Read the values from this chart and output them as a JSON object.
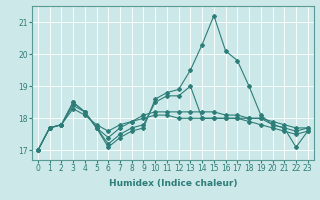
{
  "title": "",
  "xlabel": "Humidex (Indice chaleur)",
  "ylabel": "",
  "bg_color": "#cce8e8",
  "grid_color": "#ffffff",
  "line_color": "#2d7d78",
  "series": [
    [
      17.0,
      17.7,
      17.8,
      18.5,
      18.2,
      17.7,
      17.1,
      17.4,
      17.6,
      17.7,
      18.6,
      18.8,
      18.9,
      19.5,
      20.3,
      21.2,
      20.1,
      19.8,
      19.0,
      18.1,
      17.8,
      17.7,
      17.1,
      17.6
    ],
    [
      17.0,
      17.7,
      17.8,
      18.5,
      18.2,
      17.7,
      17.4,
      17.7,
      17.9,
      18.0,
      18.1,
      18.1,
      18.0,
      18.0,
      18.0,
      18.0,
      18.0,
      18.0,
      18.0,
      18.0,
      17.9,
      17.8,
      17.7,
      17.7
    ],
    [
      17.0,
      17.7,
      17.8,
      18.3,
      18.1,
      17.8,
      17.6,
      17.8,
      17.9,
      18.1,
      18.2,
      18.2,
      18.2,
      18.2,
      18.2,
      18.2,
      18.1,
      18.1,
      18.0,
      18.0,
      17.8,
      17.7,
      17.6,
      17.7
    ],
    [
      17.0,
      17.7,
      17.8,
      18.4,
      18.2,
      17.7,
      17.2,
      17.5,
      17.7,
      17.8,
      18.5,
      18.7,
      18.7,
      19.0,
      18.0,
      18.0,
      18.0,
      18.0,
      17.9,
      17.8,
      17.7,
      17.6,
      17.5,
      17.6
    ]
  ],
  "ylim": [
    16.7,
    21.5
  ],
  "yticks": [
    17,
    18,
    19,
    20,
    21
  ],
  "xticks": [
    0,
    1,
    2,
    3,
    4,
    5,
    6,
    7,
    8,
    9,
    10,
    11,
    12,
    13,
    14,
    15,
    16,
    17,
    18,
    19,
    20,
    21,
    22,
    23
  ],
  "marker": "D",
  "markersize": 2.0,
  "linewidth": 0.8,
  "tick_labelsize": 5.5,
  "xlabel_fontsize": 6.5
}
